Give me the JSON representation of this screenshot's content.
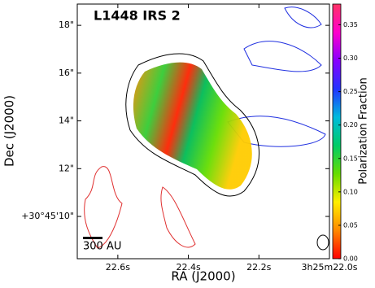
{
  "chart_data": {
    "type": "image",
    "title": "L1448 IRS 2",
    "x_label": "RA (J2000)",
    "y_label": "Dec (J2000)",
    "xlim": [
      22.715,
      22.0
    ],
    "xticks": [
      {
        "value": 22.6,
        "label": "22.6s"
      },
      {
        "value": 22.4,
        "label": "22.4s"
      },
      {
        "value": 22.2,
        "label": "22.2s"
      },
      {
        "value": 22.0,
        "label": "3h25m22.0s"
      }
    ],
    "ylim": [
      8.23,
      18.89
    ],
    "yticks": [
      {
        "value": 10,
        "label": "+30°45'10\""
      },
      {
        "value": 12,
        "label": "12\""
      },
      {
        "value": 14,
        "label": "14\""
      },
      {
        "value": 16,
        "label": "16\""
      },
      {
        "value": 18,
        "label": "18\""
      }
    ],
    "colorbar": {
      "label": "Polarization Fraction",
      "clim": [
        0,
        0.381
      ],
      "ticks": [
        {
          "value": 0,
          "label": "0.00"
        },
        {
          "value": 0.05,
          "label": "0.05"
        },
        {
          "value": 0.1,
          "label": "0.10"
        },
        {
          "value": 0.15,
          "label": "0.15"
        },
        {
          "value": 0.2,
          "label": "0.20"
        },
        {
          "value": 0.25,
          "label": "0.25"
        },
        {
          "value": 0.3,
          "label": "0.30"
        },
        {
          "value": 0.35,
          "label": "0.35"
        }
      ],
      "colormap": [
        "#ff0000",
        "#ff8800",
        "#ffee00",
        "#66dd00",
        "#00cc66",
        "#00bbdd",
        "#2233ff",
        "#8800ff",
        "#ff00cc",
        "#ff3366"
      ]
    },
    "scale_bar_label": "300 AU"
  }
}
